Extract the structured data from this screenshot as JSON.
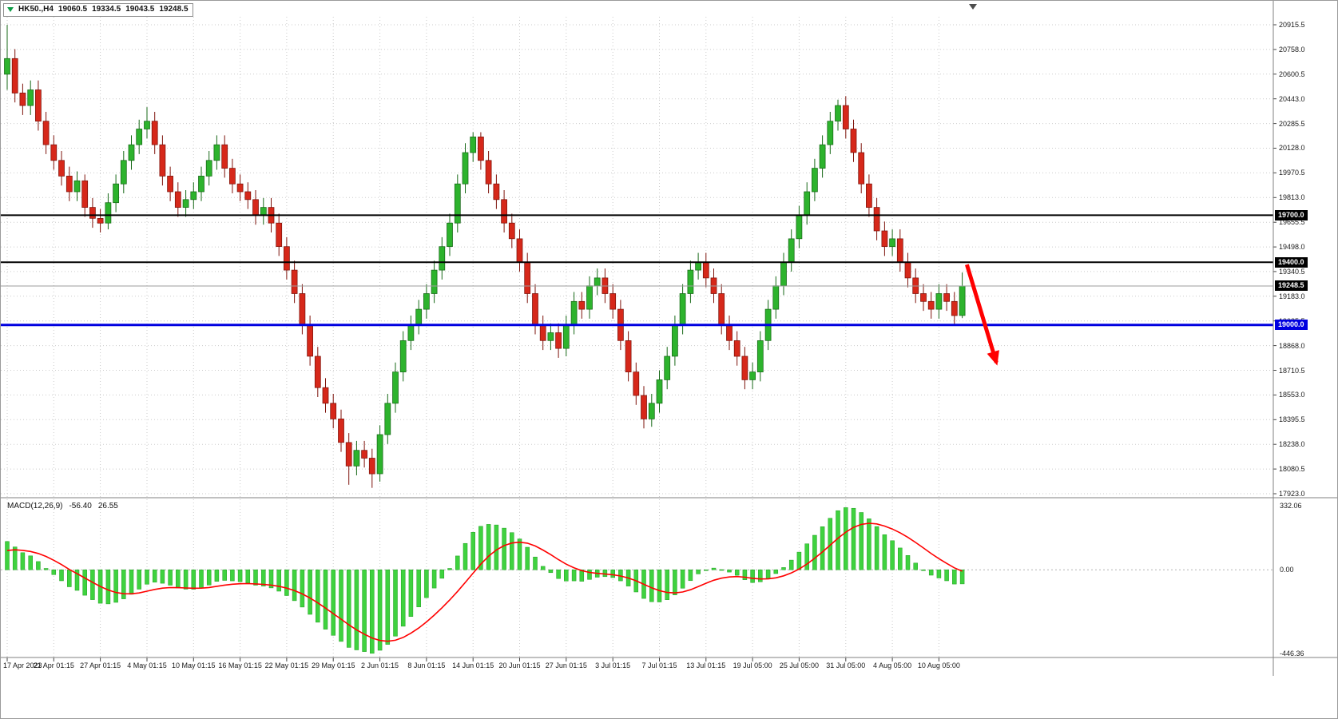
{
  "quote_bar": {
    "symbol_period": "HK50.,H4",
    "open": "19060.5",
    "high": "19334.5",
    "low": "19043.5",
    "close": "19248.5"
  },
  "macd_panel": {
    "label": "MACD(12,26,9)",
    "value": "-56.40",
    "signal_value": "26.55",
    "scale_max": "332.06",
    "scale_zero": "0.00",
    "scale_min": "-446.36"
  },
  "chart_data": {
    "type": "candlestick",
    "title": "HK50. H4 candlestick chart with MACD(12,26,9)",
    "symbol": "HK50.",
    "timeframe": "H4",
    "colors": {
      "up": "#2db32d",
      "up_edge": "#176917",
      "down": "#d6281a",
      "down_edge": "#7e130b",
      "grid": "#cbcbcb",
      "axis": "#808080",
      "blue_line": "#0000e0",
      "black_line": "#000000",
      "current_line": "#9e9e9e",
      "arrow": "#ff0000"
    },
    "price_axis": {
      "ticks": [
        20915.5,
        20758.0,
        20600.5,
        20443.0,
        20285.5,
        20128.0,
        19970.5,
        19813.0,
        19655.5,
        19498.0,
        19340.5,
        19183.0,
        19025.5,
        18868.0,
        18710.5,
        18553.0,
        18395.5,
        18238.0,
        18080.5,
        17923.0
      ]
    },
    "time_axis": {
      "tick_every_n_candles": 6,
      "ticks": [
        "17 Apr 2023",
        "21 Apr 01:15",
        "27 Apr 01:15",
        "4 May 01:15",
        "10 May 01:15",
        "16 May 01:15",
        "22 May 01:15",
        "29 May 01:15",
        "2 Jun 01:15",
        "8 Jun 01:15",
        "14 Jun 01:15",
        "20 Jun 01:15",
        "27 Jun 01:15",
        "3 Jul 01:15",
        "7 Jul 01:15",
        "13 Jul 01:15",
        "19 Jul 05:00",
        "25 Jul 05:00",
        "31 Jul 05:00",
        "4 Aug 05:00",
        "10 Aug 05:00"
      ]
    },
    "horizontal_lines": [
      {
        "name": "resistance-19700",
        "price": 19700.0,
        "label": "19700.0",
        "line_color": "#000000",
        "tag_color": "#000000",
        "width": 2
      },
      {
        "name": "support-19400",
        "price": 19400.0,
        "label": "19400.0",
        "line_color": "#000000",
        "tag_color": "#000000",
        "width": 2
      },
      {
        "name": "current-price",
        "price": 19248.5,
        "label": "19248.5",
        "line_color": "#9e9e9e",
        "tag_color": "#000000",
        "width": 1
      },
      {
        "name": "support-19000",
        "price": 19000.0,
        "label": "19000.0",
        "line_color": "#0000e0",
        "tag_color": "#0000e0",
        "width": 3
      }
    ],
    "annotations": {
      "arrow": {
        "from_index": 123.6,
        "from_price": 19385,
        "to_index": 127.4,
        "to_price": 18760,
        "color": "#ff0000"
      }
    },
    "macd": {
      "fast": 12,
      "slow": 26,
      "signal": 9,
      "histogram_color": "#3fd23f",
      "histogram_edge": "#1d9e1d",
      "signal_color": "#ff0000",
      "scale_max": 332.06,
      "scale_min": -446.36
    },
    "candles": [
      [
        20600,
        20915,
        20500,
        20700
      ],
      [
        20700,
        20760,
        20420,
        20480
      ],
      [
        20480,
        20540,
        20340,
        20400
      ],
      [
        20400,
        20560,
        20340,
        20500
      ],
      [
        20500,
        20560,
        20240,
        20300
      ],
      [
        20300,
        20360,
        20090,
        20150
      ],
      [
        20150,
        20210,
        19990,
        20050
      ],
      [
        20050,
        20110,
        19890,
        19950
      ],
      [
        19950,
        20010,
        19790,
        19850
      ],
      [
        19850,
        19980,
        19790,
        19920
      ],
      [
        19920,
        19960,
        19690,
        19750
      ],
      [
        19750,
        19810,
        19620,
        19680
      ],
      [
        19680,
        19740,
        19590,
        19650
      ],
      [
        19650,
        19840,
        19610,
        19780
      ],
      [
        19780,
        19960,
        19720,
        19900
      ],
      [
        19900,
        20110,
        19840,
        20050
      ],
      [
        20050,
        20210,
        19990,
        20150
      ],
      [
        20150,
        20310,
        20090,
        20250
      ],
      [
        20250,
        20390,
        20190,
        20300
      ],
      [
        20300,
        20360,
        20090,
        20150
      ],
      [
        20150,
        20210,
        19890,
        19950
      ],
      [
        19950,
        20010,
        19790,
        19850
      ],
      [
        19850,
        19910,
        19690,
        19750
      ],
      [
        19750,
        19860,
        19690,
        19800
      ],
      [
        19800,
        19910,
        19740,
        19850
      ],
      [
        19850,
        20010,
        19790,
        19950
      ],
      [
        19950,
        20110,
        19890,
        20050
      ],
      [
        20050,
        20210,
        19990,
        20150
      ],
      [
        20150,
        20210,
        19940,
        20000
      ],
      [
        20000,
        20060,
        19840,
        19900
      ],
      [
        19900,
        19960,
        19790,
        19850
      ],
      [
        19850,
        19910,
        19740,
        19800
      ],
      [
        19800,
        19860,
        19640,
        19700
      ],
      [
        19700,
        19810,
        19640,
        19750
      ],
      [
        19750,
        19810,
        19590,
        19650
      ],
      [
        19650,
        19710,
        19440,
        19500
      ],
      [
        19500,
        19560,
        19290,
        19350
      ],
      [
        19350,
        19410,
        19140,
        19200
      ],
      [
        19200,
        19260,
        18940,
        19000
      ],
      [
        19000,
        19060,
        18740,
        18800
      ],
      [
        18800,
        18860,
        18540,
        18600
      ],
      [
        18600,
        18660,
        18440,
        18500
      ],
      [
        18500,
        18560,
        18340,
        18400
      ],
      [
        18400,
        18460,
        18190,
        18250
      ],
      [
        18250,
        18310,
        17980,
        18100
      ],
      [
        18100,
        18260,
        18040,
        18200
      ],
      [
        18200,
        18260,
        18090,
        18150
      ],
      [
        18150,
        18210,
        17960,
        18050
      ],
      [
        18050,
        18360,
        18000,
        18300
      ],
      [
        18300,
        18560,
        18240,
        18500
      ],
      [
        18500,
        18760,
        18440,
        18700
      ],
      [
        18700,
        18960,
        18640,
        18900
      ],
      [
        18900,
        19060,
        18840,
        19000
      ],
      [
        19000,
        19160,
        18940,
        19100
      ],
      [
        19100,
        19260,
        19040,
        19200
      ],
      [
        19200,
        19410,
        19140,
        19350
      ],
      [
        19350,
        19560,
        19290,
        19500
      ],
      [
        19500,
        19710,
        19440,
        19650
      ],
      [
        19650,
        19960,
        19590,
        19900
      ],
      [
        19900,
        20160,
        19840,
        20100
      ],
      [
        20100,
        20230,
        20040,
        20200
      ],
      [
        20200,
        20230,
        19990,
        20050
      ],
      [
        20050,
        20110,
        19840,
        19900
      ],
      [
        19900,
        19960,
        19740,
        19800
      ],
      [
        19800,
        19860,
        19590,
        19650
      ],
      [
        19650,
        19710,
        19490,
        19550
      ],
      [
        19550,
        19610,
        19340,
        19400
      ],
      [
        19400,
        19460,
        19140,
        19200
      ],
      [
        19200,
        19260,
        18940,
        19000
      ],
      [
        19000,
        19060,
        18840,
        18900
      ],
      [
        18900,
        19010,
        18840,
        18950
      ],
      [
        18950,
        19010,
        18790,
        18850
      ],
      [
        18850,
        19060,
        18800,
        19000
      ],
      [
        19000,
        19210,
        18940,
        19150
      ],
      [
        19150,
        19210,
        19040,
        19100
      ],
      [
        19100,
        19310,
        19040,
        19250
      ],
      [
        19250,
        19360,
        19190,
        19300
      ],
      [
        19300,
        19360,
        19140,
        19200
      ],
      [
        19200,
        19260,
        19040,
        19100
      ],
      [
        19100,
        19160,
        18840,
        18900
      ],
      [
        18900,
        18960,
        18640,
        18700
      ],
      [
        18700,
        18760,
        18490,
        18550
      ],
      [
        18550,
        18610,
        18340,
        18400
      ],
      [
        18400,
        18560,
        18350,
        18500
      ],
      [
        18500,
        18710,
        18440,
        18650
      ],
      [
        18650,
        18860,
        18590,
        18800
      ],
      [
        18800,
        19060,
        18740,
        19000
      ],
      [
        19000,
        19260,
        18940,
        19200
      ],
      [
        19200,
        19410,
        19140,
        19350
      ],
      [
        19350,
        19460,
        19290,
        19400
      ],
      [
        19400,
        19460,
        19240,
        19300
      ],
      [
        19300,
        19360,
        19140,
        19200
      ],
      [
        19200,
        19260,
        18940,
        19000
      ],
      [
        19000,
        19060,
        18840,
        18900
      ],
      [
        18900,
        18960,
        18740,
        18800
      ],
      [
        18800,
        18860,
        18590,
        18650
      ],
      [
        18650,
        18760,
        18590,
        18700
      ],
      [
        18700,
        18960,
        18640,
        18900
      ],
      [
        18900,
        19160,
        18840,
        19100
      ],
      [
        19100,
        19310,
        19040,
        19250
      ],
      [
        19250,
        19460,
        19190,
        19400
      ],
      [
        19400,
        19610,
        19340,
        19550
      ],
      [
        19550,
        19760,
        19490,
        19700
      ],
      [
        19700,
        19910,
        19640,
        19850
      ],
      [
        19850,
        20060,
        19790,
        20000
      ],
      [
        20000,
        20210,
        19940,
        20150
      ],
      [
        20150,
        20360,
        20090,
        20300
      ],
      [
        20300,
        20438,
        20240,
        20400
      ],
      [
        20400,
        20460,
        20190,
        20250
      ],
      [
        20250,
        20310,
        20040,
        20100
      ],
      [
        20100,
        20160,
        19840,
        19900
      ],
      [
        19900,
        19960,
        19690,
        19750
      ],
      [
        19750,
        19810,
        19540,
        19600
      ],
      [
        19600,
        19660,
        19440,
        19500
      ],
      [
        19500,
        19610,
        19440,
        19550
      ],
      [
        19550,
        19610,
        19340,
        19400
      ],
      [
        19400,
        19460,
        19240,
        19300
      ],
      [
        19300,
        19360,
        19140,
        19200
      ],
      [
        19200,
        19260,
        19090,
        19150
      ],
      [
        19150,
        19210,
        19040,
        19100
      ],
      [
        19100,
        19260,
        19040,
        19200
      ],
      [
        19200,
        19260,
        19090,
        19150
      ],
      [
        19150,
        19210,
        19000,
        19060
      ],
      [
        19060.5,
        19334.5,
        19043.5,
        19248.5
      ]
    ]
  }
}
